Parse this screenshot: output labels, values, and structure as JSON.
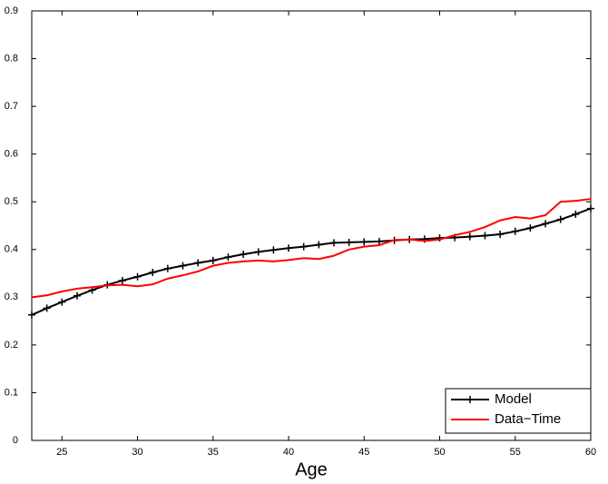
{
  "chart_data": {
    "type": "line",
    "x_label": "Age",
    "x": [
      23,
      24,
      25,
      26,
      27,
      28,
      29,
      30,
      31,
      32,
      33,
      34,
      35,
      36,
      37,
      38,
      39,
      40,
      41,
      42,
      43,
      44,
      45,
      46,
      47,
      48,
      49,
      50,
      51,
      52,
      53,
      54,
      55,
      56,
      57,
      58,
      59,
      60
    ],
    "series": [
      {
        "name": "Model",
        "color": "#000000",
        "marker": "+",
        "values": [
          0.263,
          0.277,
          0.29,
          0.303,
          0.315,
          0.326,
          0.335,
          0.343,
          0.352,
          0.36,
          0.366,
          0.372,
          0.377,
          0.384,
          0.39,
          0.395,
          0.399,
          0.403,
          0.406,
          0.41,
          0.414,
          0.415,
          0.416,
          0.417,
          0.419,
          0.421,
          0.422,
          0.424,
          0.425,
          0.427,
          0.429,
          0.432,
          0.438,
          0.445,
          0.454,
          0.463,
          0.474,
          0.486
        ]
      },
      {
        "name": "Data−Time",
        "color": "#ff0000",
        "values": [
          0.3,
          0.304,
          0.312,
          0.318,
          0.321,
          0.325,
          0.326,
          0.323,
          0.327,
          0.339,
          0.346,
          0.354,
          0.366,
          0.372,
          0.375,
          0.377,
          0.375,
          0.378,
          0.382,
          0.38,
          0.387,
          0.4,
          0.406,
          0.409,
          0.42,
          0.421,
          0.418,
          0.421,
          0.43,
          0.437,
          0.447,
          0.461,
          0.468,
          0.465,
          0.472,
          0.5,
          0.502,
          0.506
        ]
      }
    ],
    "xlim": [
      23,
      60
    ],
    "xticks": [
      25,
      30,
      35,
      40,
      45,
      50,
      55,
      60
    ],
    "ylim": [
      0,
      0.9
    ],
    "yticks": [
      0,
      0.1,
      0.2,
      0.3,
      0.4,
      0.5,
      0.6,
      0.7,
      0.8,
      0.9
    ],
    "legend": "lower right"
  }
}
